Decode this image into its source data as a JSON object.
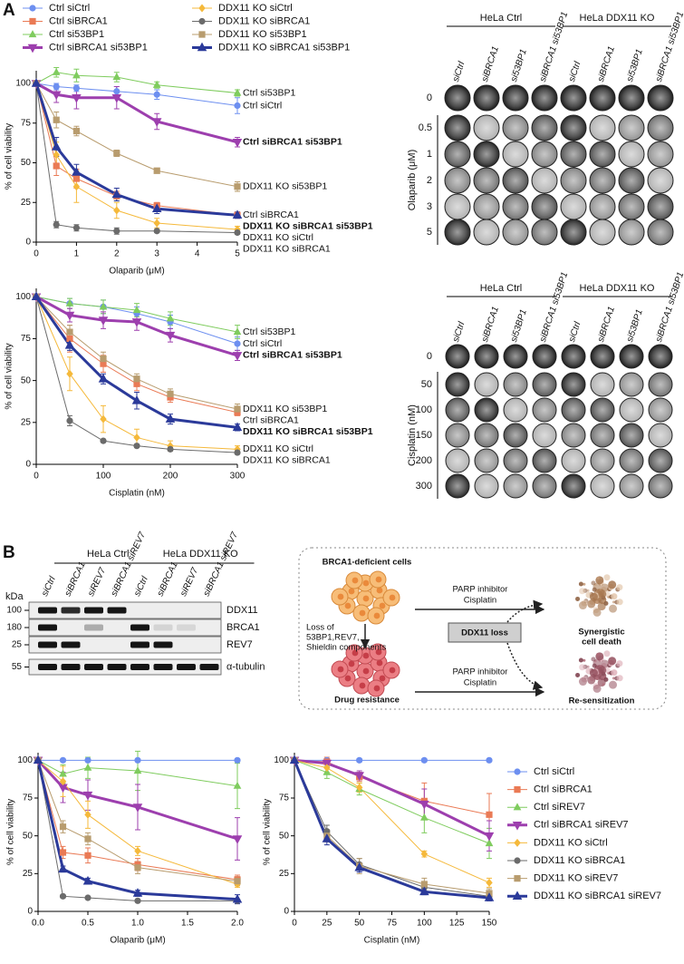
{
  "panel_labels": [
    "A",
    "B"
  ],
  "chart_data": [
    {
      "type": "line",
      "x_label": "Olaparib (μM)",
      "y_label": "% of cell viability",
      "x": [
        0,
        0.5,
        1,
        2,
        3,
        5
      ],
      "xlim": [
        0,
        5
      ],
      "xticks": [
        0,
        1,
        2,
        3,
        4,
        5
      ],
      "ylim": [
        0,
        108
      ],
      "yticks": [
        0,
        25,
        50,
        75,
        100
      ],
      "legend": "top",
      "end_labels": true,
      "series": [
        {
          "name": "Ctrl siCtrl",
          "color": "#6d8ff0",
          "marker": "circle",
          "line_width": 1,
          "values": [
            100,
            98,
            97,
            95,
            93,
            86
          ],
          "errors": [
            0,
            2,
            2,
            3,
            3,
            5
          ]
        },
        {
          "name": "Ctrl siBRCA1",
          "color": "#ea7a55",
          "marker": "square",
          "line_width": 1,
          "values": [
            100,
            48,
            40,
            29,
            23,
            17
          ],
          "errors": [
            0,
            6,
            6,
            3,
            2,
            2
          ]
        },
        {
          "name": "Ctrl si53BP1",
          "color": "#7fcc5e",
          "marker": "triangle",
          "line_width": 1,
          "values": [
            100,
            107,
            105,
            104,
            99,
            94
          ],
          "errors": [
            0,
            3,
            4,
            3,
            2,
            2
          ]
        },
        {
          "name": "Ctrl siBRCA1 si53BP1",
          "color": "#9d3fae",
          "marker": "triangle-down",
          "line_width": 3,
          "values": [
            100,
            93,
            91,
            91,
            76,
            63
          ],
          "errors": [
            0,
            5,
            7,
            7,
            5,
            3
          ]
        },
        {
          "name": "DDX11 KO siCtrl",
          "color": "#f5b93b",
          "marker": "diamond",
          "line_width": 1,
          "values": [
            100,
            55,
            35,
            20,
            12,
            8
          ],
          "errors": [
            0,
            8,
            10,
            5,
            3,
            2
          ]
        },
        {
          "name": "DDX11 KO siBRCA1",
          "color": "#6b6b6b",
          "marker": "circle",
          "line_width": 1,
          "values": [
            100,
            11,
            9,
            7,
            7,
            6
          ],
          "errors": [
            0,
            2,
            2,
            2,
            1,
            1
          ]
        },
        {
          "name": "DDX11 KO si53BP1",
          "color": "#b89c6e",
          "marker": "square",
          "line_width": 1,
          "values": [
            100,
            77,
            70,
            56,
            45,
            35
          ],
          "errors": [
            0,
            5,
            3,
            2,
            1,
            3
          ]
        },
        {
          "name": "DDX11 KO siBRCA1 si53BP1",
          "color": "#2b3a9a",
          "marker": "triangle",
          "line_width": 3,
          "values": [
            100,
            60,
            44,
            30,
            21,
            17
          ],
          "errors": [
            0,
            6,
            5,
            4,
            3,
            2
          ]
        }
      ]
    },
    {
      "type": "line",
      "x_label": "Cisplatin (nM)",
      "y_label": "% of cell viability",
      "x": [
        0,
        50,
        100,
        150,
        200,
        300
      ],
      "xlim": [
        0,
        300
      ],
      "xticks": [
        0,
        100,
        200,
        300
      ],
      "ylim": [
        0,
        105
      ],
      "yticks": [
        0,
        25,
        50,
        75,
        100
      ],
      "legend": "none",
      "end_labels": true,
      "series": [
        {
          "name": "Ctrl siCtrl",
          "color": "#6d8ff0",
          "marker": "circle",
          "line_width": 1,
          "values": [
            100,
            96,
            94,
            90,
            85,
            72
          ],
          "errors": [
            0,
            3,
            4,
            4,
            4,
            4
          ]
        },
        {
          "name": "Ctrl siBRCA1",
          "color": "#ea7a55",
          "marker": "square",
          "line_width": 1,
          "values": [
            100,
            75,
            60,
            48,
            40,
            31
          ],
          "errors": [
            0,
            8,
            5,
            4,
            3,
            2
          ]
        },
        {
          "name": "Ctrl si53BP1",
          "color": "#7fcc5e",
          "marker": "triangle",
          "line_width": 1,
          "values": [
            100,
            96,
            94,
            92,
            87,
            79
          ],
          "errors": [
            0,
            3,
            4,
            4,
            4,
            4
          ]
        },
        {
          "name": "Ctrl siBRCA1 si53BP1",
          "color": "#9d3fae",
          "marker": "triangle-down",
          "line_width": 3,
          "values": [
            100,
            89,
            86,
            85,
            77,
            65
          ],
          "errors": [
            0,
            4,
            5,
            5,
            4,
            3
          ]
        },
        {
          "name": "DDX11 KO siCtrl",
          "color": "#f5b93b",
          "marker": "diamond",
          "line_width": 1,
          "values": [
            100,
            54,
            27,
            16,
            11,
            9
          ],
          "errors": [
            0,
            10,
            8,
            5,
            3,
            2
          ]
        },
        {
          "name": "DDX11 KO siBRCA1",
          "color": "#6b6b6b",
          "marker": "circle",
          "line_width": 1,
          "values": [
            100,
            26,
            14,
            11,
            9,
            7
          ],
          "errors": [
            0,
            3,
            1,
            1,
            1,
            1
          ]
        },
        {
          "name": "DDX11 KO si53BP1",
          "color": "#b89c6e",
          "marker": "square",
          "line_width": 1,
          "values": [
            100,
            79,
            63,
            51,
            42,
            33
          ],
          "errors": [
            0,
            4,
            4,
            3,
            3,
            3
          ]
        },
        {
          "name": "DDX11 KO siBRCA1 si53BP1",
          "color": "#2b3a9a",
          "marker": "triangle",
          "line_width": 3,
          "values": [
            100,
            71,
            51,
            38,
            27,
            22
          ],
          "errors": [
            0,
            3,
            3,
            5,
            3,
            2
          ]
        }
      ]
    },
    {
      "type": "line",
      "x_label": "Olaparib (μM)",
      "y_label": "% of cell viability",
      "x": [
        0,
        0.25,
        0.5,
        1,
        2
      ],
      "xlim": [
        0,
        2
      ],
      "xticks": [
        {
          "value": 0,
          "label": "0.0"
        },
        0.5,
        {
          "value": 1,
          "label": "1.0"
        },
        1.5,
        {
          "value": 2,
          "label": "2.0"
        }
      ],
      "ylim": [
        0,
        105
      ],
      "yticks": [
        0,
        25,
        50,
        75,
        100
      ],
      "legend": "none",
      "end_labels": false,
      "series": [
        {
          "color": "#6d8ff0",
          "marker": "circle",
          "line_width": 1,
          "values": [
            100,
            100,
            100,
            100,
            100
          ],
          "errors": [
            0,
            1,
            1,
            1,
            1
          ]
        },
        {
          "color": "#ea7a55",
          "marker": "square",
          "line_width": 1,
          "values": [
            100,
            39,
            37,
            31,
            21
          ],
          "errors": [
            0,
            4,
            5,
            4,
            3
          ]
        },
        {
          "color": "#7fcc5e",
          "marker": "triangle",
          "line_width": 1,
          "values": [
            100,
            91,
            95,
            93,
            83
          ],
          "errors": [
            0,
            6,
            7,
            13,
            15
          ]
        },
        {
          "color": "#9d3fae",
          "marker": "triangle-down",
          "line_width": 3,
          "values": [
            100,
            82,
            77,
            69,
            48
          ],
          "errors": [
            0,
            10,
            10,
            15,
            14
          ]
        },
        {
          "color": "#f5b93b",
          "marker": "diamond",
          "line_width": 1,
          "values": [
            100,
            86,
            64,
            40,
            18
          ],
          "errors": [
            0,
            10,
            9,
            3,
            2
          ]
        },
        {
          "color": "#6b6b6b",
          "marker": "circle",
          "line_width": 1,
          "values": [
            100,
            10,
            9,
            7,
            7
          ],
          "errors": [
            0,
            1,
            1,
            1,
            1
          ]
        },
        {
          "color": "#b89c6e",
          "marker": "square",
          "line_width": 1,
          "values": [
            100,
            56,
            48,
            29,
            20
          ],
          "errors": [
            0,
            4,
            4,
            4,
            3
          ]
        },
        {
          "color": "#2b3a9a",
          "marker": "triangle",
          "line_width": 3,
          "values": [
            100,
            28,
            20,
            12,
            8
          ],
          "errors": [
            0,
            2,
            2,
            2,
            3
          ]
        }
      ]
    },
    {
      "type": "line",
      "x_label": "Cisplatin (nM)",
      "y_label": "% of cell viability",
      "x": [
        0,
        25,
        50,
        100,
        150
      ],
      "xlim": [
        0,
        150
      ],
      "xticks": [
        0,
        25,
        50,
        75,
        100,
        125,
        150
      ],
      "ylim": [
        0,
        105
      ],
      "yticks": [
        0,
        25,
        50,
        75,
        100
      ],
      "legend": "right",
      "end_labels": false,
      "series": [
        {
          "name": "Ctrl siCtrl",
          "color": "#6d8ff0",
          "marker": "circle",
          "line_width": 1,
          "values": [
            100,
            100,
            100,
            100,
            100
          ],
          "errors": [
            0,
            1,
            1,
            1,
            1
          ]
        },
        {
          "name": "Ctrl siBRCA1",
          "color": "#ea7a55",
          "marker": "square",
          "line_width": 1,
          "values": [
            100,
            99,
            89,
            73,
            64
          ],
          "errors": [
            0,
            3,
            3,
            12,
            14
          ]
        },
        {
          "name": "Ctrl siREV7",
          "color": "#7fcc5e",
          "marker": "triangle",
          "line_width": 1,
          "values": [
            100,
            92,
            81,
            62,
            45
          ],
          "errors": [
            0,
            4,
            4,
            10,
            10
          ]
        },
        {
          "name": "Ctrl siBRCA1 siREV7",
          "color": "#9d3fae",
          "marker": "triangle-down",
          "line_width": 3,
          "values": [
            100,
            98,
            90,
            71,
            50
          ],
          "errors": [
            0,
            3,
            3,
            10,
            10
          ]
        },
        {
          "name": "DDX11 KO siCtrl",
          "color": "#f5b93b",
          "marker": "diamond",
          "line_width": 1,
          "values": [
            100,
            95,
            82,
            38,
            19
          ],
          "errors": [
            0,
            3,
            3,
            2,
            3
          ]
        },
        {
          "name": "DDX11 KO siBRCA1",
          "color": "#6b6b6b",
          "marker": "circle",
          "line_width": 1,
          "values": [
            100,
            53,
            31,
            16,
            10
          ],
          "errors": [
            0,
            4,
            4,
            3,
            2
          ]
        },
        {
          "name": "DDX11 KO siREV7",
          "color": "#b89c6e",
          "marker": "square",
          "line_width": 1,
          "values": [
            100,
            50,
            30,
            18,
            12
          ],
          "errors": [
            0,
            4,
            5,
            4,
            3
          ]
        },
        {
          "name": "DDX11 KO siBRCA1 siREV7",
          "color": "#2b3a9a",
          "marker": "triangle",
          "line_width": 3,
          "values": [
            100,
            48,
            29,
            13,
            9
          ],
          "errors": [
            0,
            4,
            3,
            2,
            2
          ]
        }
      ]
    }
  ],
  "colony_assays": [
    {
      "groups": [
        "HeLa Ctrl",
        "HeLa DDX11 KO"
      ],
      "columns": [
        "siCtrl",
        "siBRCA1",
        "si53BP1",
        "siBRCA1 si53BP1",
        "siCtrl",
        "siBRCA1",
        "si53BP1",
        "siBRCA1 si53BP1"
      ],
      "row_title": "Olaparib (μM)",
      "rows": [
        0,
        0.5,
        1,
        2,
        3,
        5
      ]
    },
    {
      "groups": [
        "HeLa Ctrl",
        "HeLa DDX11 KO"
      ],
      "columns": [
        "siCtrl",
        "siBRCA1",
        "si53BP1",
        "siBRCA1 si53BP1",
        "siCtrl",
        "siBRCA1",
        "si53BP1",
        "siBRCA1 si53BP1"
      ],
      "row_title": "Cisplatin (nM)",
      "rows": [
        0,
        50,
        100,
        150,
        200,
        300
      ]
    }
  ],
  "western_blot": {
    "groups": [
      "HeLa Ctrl",
      "HeLa DDX11 KO"
    ],
    "lanes": [
      "siCtrl",
      "siBRCA1",
      "siREV7",
      "siBRCA1 siREV7",
      "siCtrl",
      "siBRCA1",
      "siREV7",
      "siBRCA1 siREV7"
    ],
    "unit": "kDa",
    "rows": [
      {
        "size": 100,
        "protein": "DDX11"
      },
      {
        "size": 180,
        "protein": "BRCA1"
      },
      {
        "size": 25,
        "protein": "REV7"
      },
      {
        "size": 55,
        "protein": "α-tubulin"
      }
    ]
  },
  "diagram": {
    "top_cells": "BRCA1-deficient cells",
    "top_arrow": [
      "PARP inhibitor",
      "Cisplatin"
    ],
    "loss": [
      "Loss of",
      "53BP1,REV7,",
      "Shieldin components"
    ],
    "bottom_cells": "Drug resistance",
    "bottom_arrow": [
      "PARP inhibitor",
      "Cisplatin"
    ],
    "center": "DDX11 loss",
    "top_result": [
      "Synergistic",
      "cell death"
    ],
    "bottom_result": "Re-sensitization"
  }
}
